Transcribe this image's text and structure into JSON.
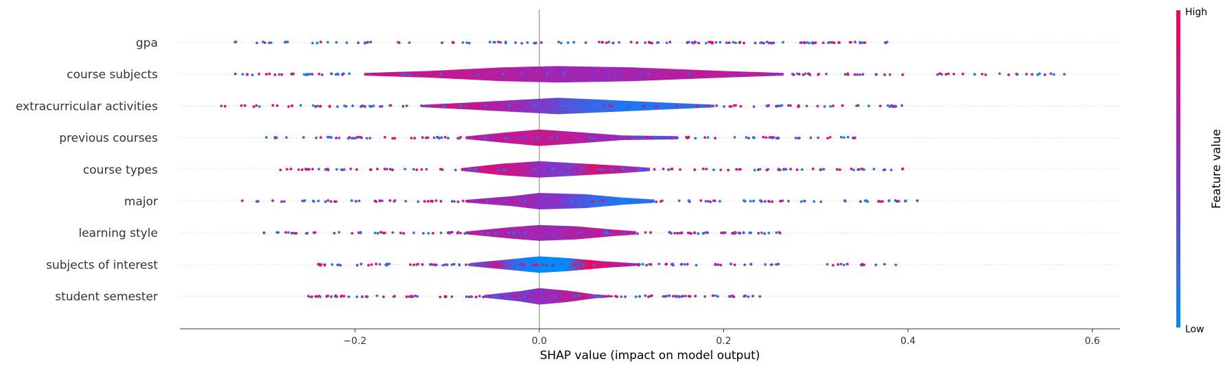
{
  "chart_data": {
    "type": "violin",
    "title": "",
    "xlabel": "SHAP value (impact on model output)",
    "xlim": [
      -0.39,
      0.63
    ],
    "xticks": [
      {
        "value": -0.2,
        "label": "−0.2"
      },
      {
        "value": 0.0,
        "label": "0.0"
      },
      {
        "value": 0.2,
        "label": "0.2"
      },
      {
        "value": 0.4,
        "label": "0.4"
      },
      {
        "value": 0.6,
        "label": "0.6"
      }
    ],
    "colorbar": {
      "label": "Feature value",
      "high": "High",
      "low": "Low",
      "low_color": "#008bfb",
      "high_color": "#ff0052"
    },
    "features": [
      {
        "name": "gpa",
        "min": -0.33,
        "max": 0.38,
        "violin": [],
        "colors": [
          0.5,
          0.6,
          0.4,
          0.5,
          0.6,
          0.4,
          0.5
        ]
      },
      {
        "name": "course subjects",
        "min": -0.33,
        "max": 0.585,
        "violin": [
          [
            -0.19,
            0.08
          ],
          [
            -0.12,
            0.2
          ],
          [
            -0.04,
            0.42
          ],
          [
            0.02,
            0.5
          ],
          [
            0.1,
            0.42
          ],
          [
            0.2,
            0.2
          ],
          [
            0.265,
            0.08
          ]
        ],
        "colors": [
          0.8,
          0.75,
          0.7,
          0.6,
          0.55,
          0.65,
          0.7,
          0.6
        ]
      },
      {
        "name": "extracurricular activities",
        "min": -0.345,
        "max": 0.4,
        "violin": [
          [
            -0.125,
            0.08
          ],
          [
            -0.08,
            0.2
          ],
          [
            -0.02,
            0.38
          ],
          [
            0.02,
            0.5
          ],
          [
            0.07,
            0.38
          ],
          [
            0.14,
            0.2
          ],
          [
            0.19,
            0.08
          ]
        ],
        "colors": [
          0.7,
          0.75,
          0.6,
          0.4,
          0.2,
          0.1,
          0.15,
          0.2
        ]
      },
      {
        "name": "previous courses",
        "min": -0.3,
        "max": 0.35,
        "violin": [
          [
            -0.08,
            0.08
          ],
          [
            -0.04,
            0.3
          ],
          [
            0.0,
            0.5
          ],
          [
            0.04,
            0.35
          ],
          [
            0.09,
            0.14
          ],
          [
            0.15,
            0.1
          ]
        ],
        "colors": [
          0.6,
          0.7,
          0.75,
          0.7,
          0.55,
          0.4,
          0.3
        ]
      },
      {
        "name": "course types",
        "min": -0.285,
        "max": 0.4,
        "violin": [
          [
            -0.085,
            0.08
          ],
          [
            -0.04,
            0.35
          ],
          [
            0.0,
            0.5
          ],
          [
            0.04,
            0.38
          ],
          [
            0.09,
            0.22
          ],
          [
            0.12,
            0.1
          ]
        ],
        "colors": [
          0.7,
          0.8,
          0.75,
          0.5,
          0.4,
          0.9,
          0.6,
          0.4
        ]
      },
      {
        "name": "major",
        "min": -0.325,
        "max": 0.415,
        "violin": [
          [
            -0.08,
            0.08
          ],
          [
            -0.03,
            0.3
          ],
          [
            0.0,
            0.5
          ],
          [
            0.05,
            0.42
          ],
          [
            0.09,
            0.22
          ],
          [
            0.125,
            0.1
          ]
        ],
        "colors": [
          0.55,
          0.6,
          0.55,
          0.45,
          0.2,
          0.1,
          0.15
        ]
      },
      {
        "name": "learning style",
        "min": -0.305,
        "max": 0.27,
        "violin": [
          [
            -0.08,
            0.08
          ],
          [
            -0.03,
            0.35
          ],
          [
            0.0,
            0.48
          ],
          [
            0.04,
            0.4
          ],
          [
            0.08,
            0.2
          ],
          [
            0.105,
            0.1
          ]
        ],
        "colors": [
          0.7,
          0.65,
          0.6,
          0.55,
          0.65,
          0.7,
          0.7
        ]
      },
      {
        "name": "subjects of interest",
        "min": -0.24,
        "max": 0.39,
        "violin": [
          [
            -0.075,
            0.1
          ],
          [
            -0.04,
            0.28
          ],
          [
            0.0,
            0.5
          ],
          [
            0.03,
            0.4
          ],
          [
            0.07,
            0.2
          ],
          [
            0.105,
            0.08
          ]
        ],
        "colors": [
          0.2,
          0.7,
          0.1,
          0.0,
          0.0,
          0.95,
          0.7,
          0.55
        ]
      },
      {
        "name": "student semester",
        "min": -0.255,
        "max": 0.245,
        "violin": [
          [
            -0.06,
            0.08
          ],
          [
            -0.02,
            0.32
          ],
          [
            0.0,
            0.5
          ],
          [
            0.03,
            0.35
          ],
          [
            0.06,
            0.12
          ],
          [
            0.08,
            0.05
          ]
        ],
        "colors": [
          0.45,
          0.4,
          0.45,
          0.55,
          0.7,
          0.75,
          0.7
        ]
      }
    ]
  }
}
